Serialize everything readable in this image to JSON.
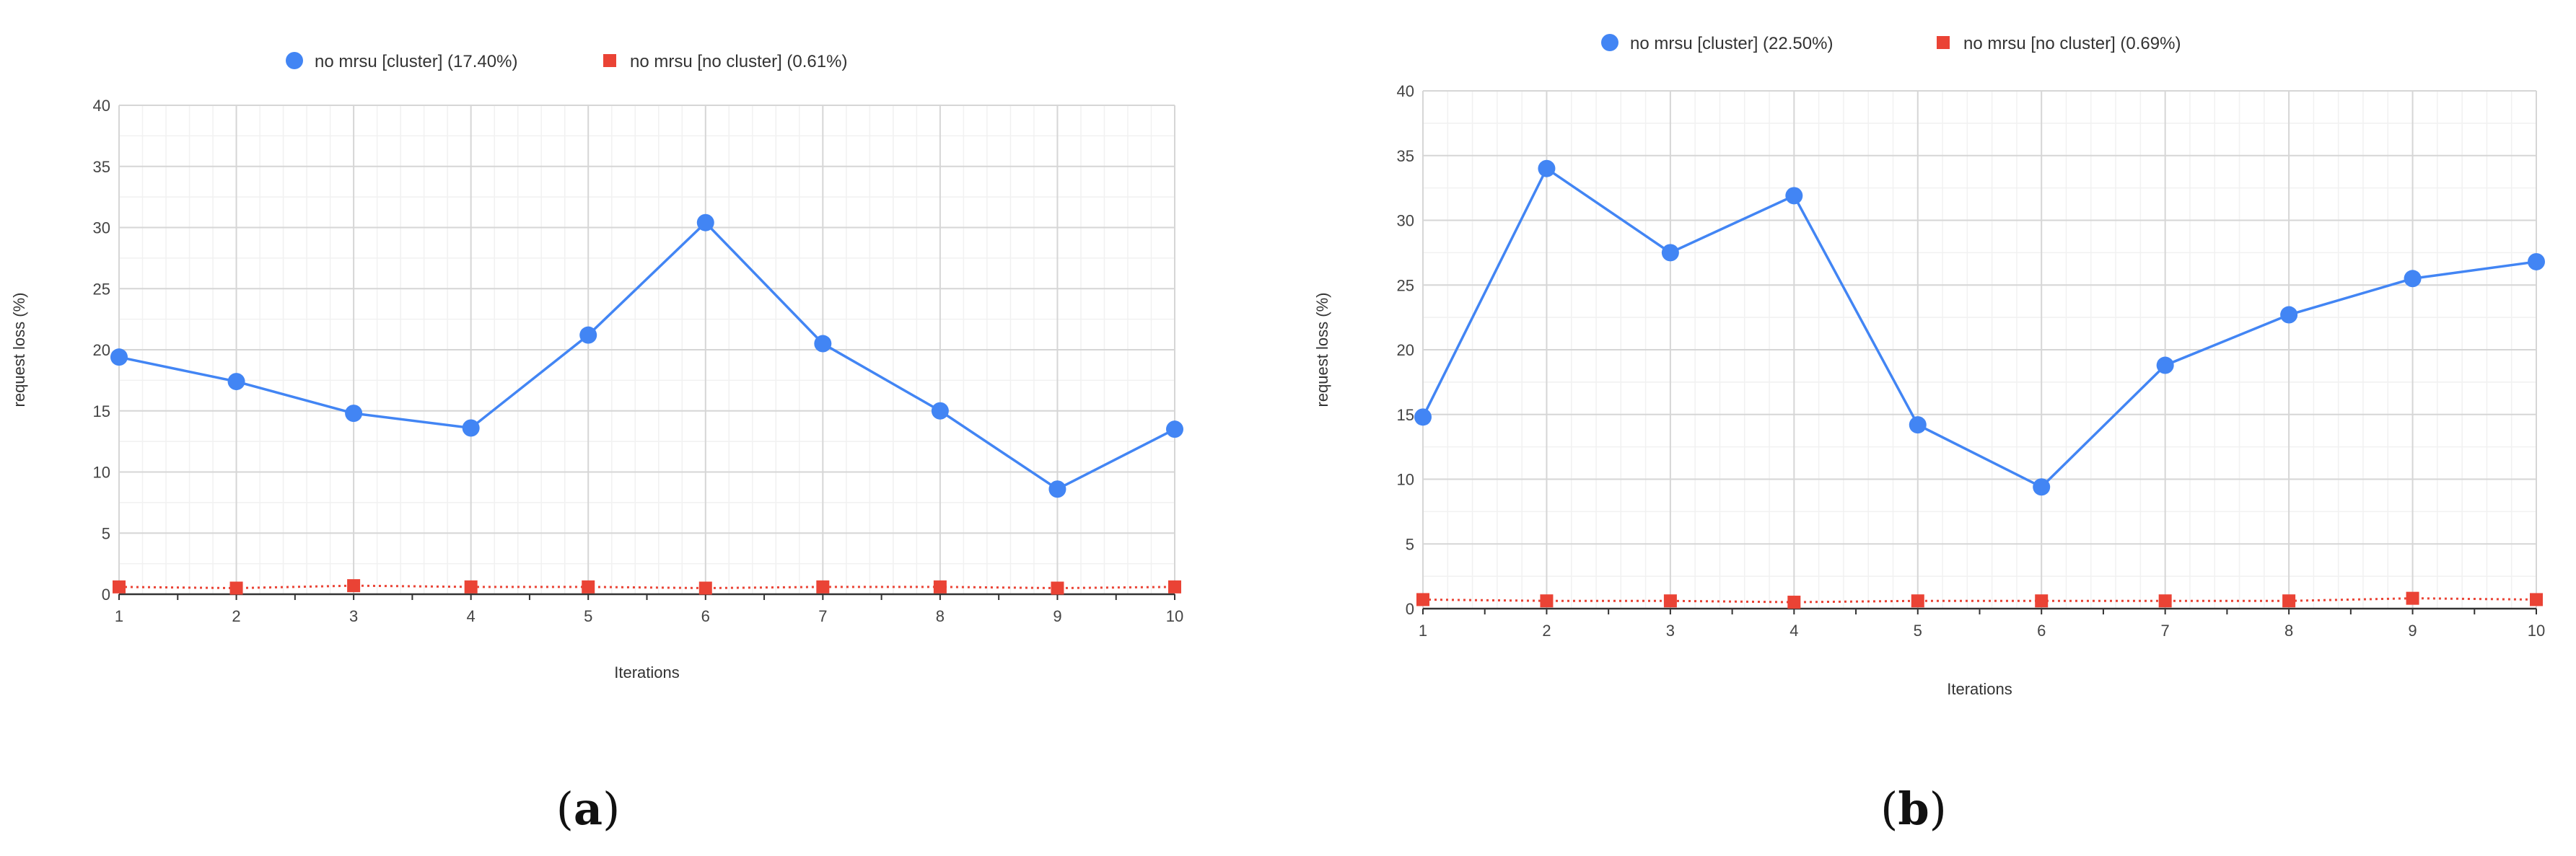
{
  "chart_data": [
    {
      "type": "line",
      "caption_letter": "a",
      "title": "",
      "xlabel": "Iterations",
      "ylabel": "request loss (%)",
      "categories": [
        "1",
        "2",
        "3",
        "4",
        "5",
        "6",
        "7",
        "8",
        "9",
        "10"
      ],
      "ylim": [
        0,
        40
      ],
      "yticks": [
        0,
        5,
        10,
        15,
        20,
        25,
        30,
        35,
        40
      ],
      "grid": true,
      "legend_position": "top-center",
      "series": [
        {
          "name": "no mrsu [cluster] (17.40%)",
          "color": "#4285f4",
          "marker": "circle",
          "line_style": "solid",
          "values": [
            19.4,
            17.4,
            14.8,
            13.6,
            21.2,
            30.4,
            20.5,
            15.0,
            8.6,
            13.5
          ]
        },
        {
          "name": "no mrsu [no cluster] (0.61%)",
          "color": "#ea4335",
          "marker": "square",
          "line_style": "dotted",
          "values": [
            0.6,
            0.5,
            0.7,
            0.6,
            0.6,
            0.5,
            0.6,
            0.6,
            0.5,
            0.6
          ]
        }
      ]
    },
    {
      "type": "line",
      "caption_letter": "b",
      "title": "",
      "xlabel": "Iterations",
      "ylabel": "request loss (%)",
      "categories": [
        "1",
        "2",
        "3",
        "4",
        "5",
        "6",
        "7",
        "8",
        "9",
        "10"
      ],
      "ylim": [
        0,
        40
      ],
      "yticks": [
        0,
        5,
        10,
        15,
        20,
        25,
        30,
        35,
        40
      ],
      "grid": true,
      "legend_position": "top-center",
      "series": [
        {
          "name": "no mrsu [cluster] (22.50%)",
          "color": "#4285f4",
          "marker": "circle",
          "line_style": "solid",
          "values": [
            14.8,
            34.0,
            27.5,
            31.9,
            14.2,
            9.4,
            18.8,
            22.7,
            25.5,
            26.8
          ]
        },
        {
          "name": "no mrsu [no cluster] (0.69%)",
          "color": "#ea4335",
          "marker": "square",
          "line_style": "dotted",
          "values": [
            0.7,
            0.6,
            0.6,
            0.5,
            0.6,
            0.6,
            0.6,
            0.6,
            0.8,
            0.7
          ]
        }
      ]
    }
  ]
}
